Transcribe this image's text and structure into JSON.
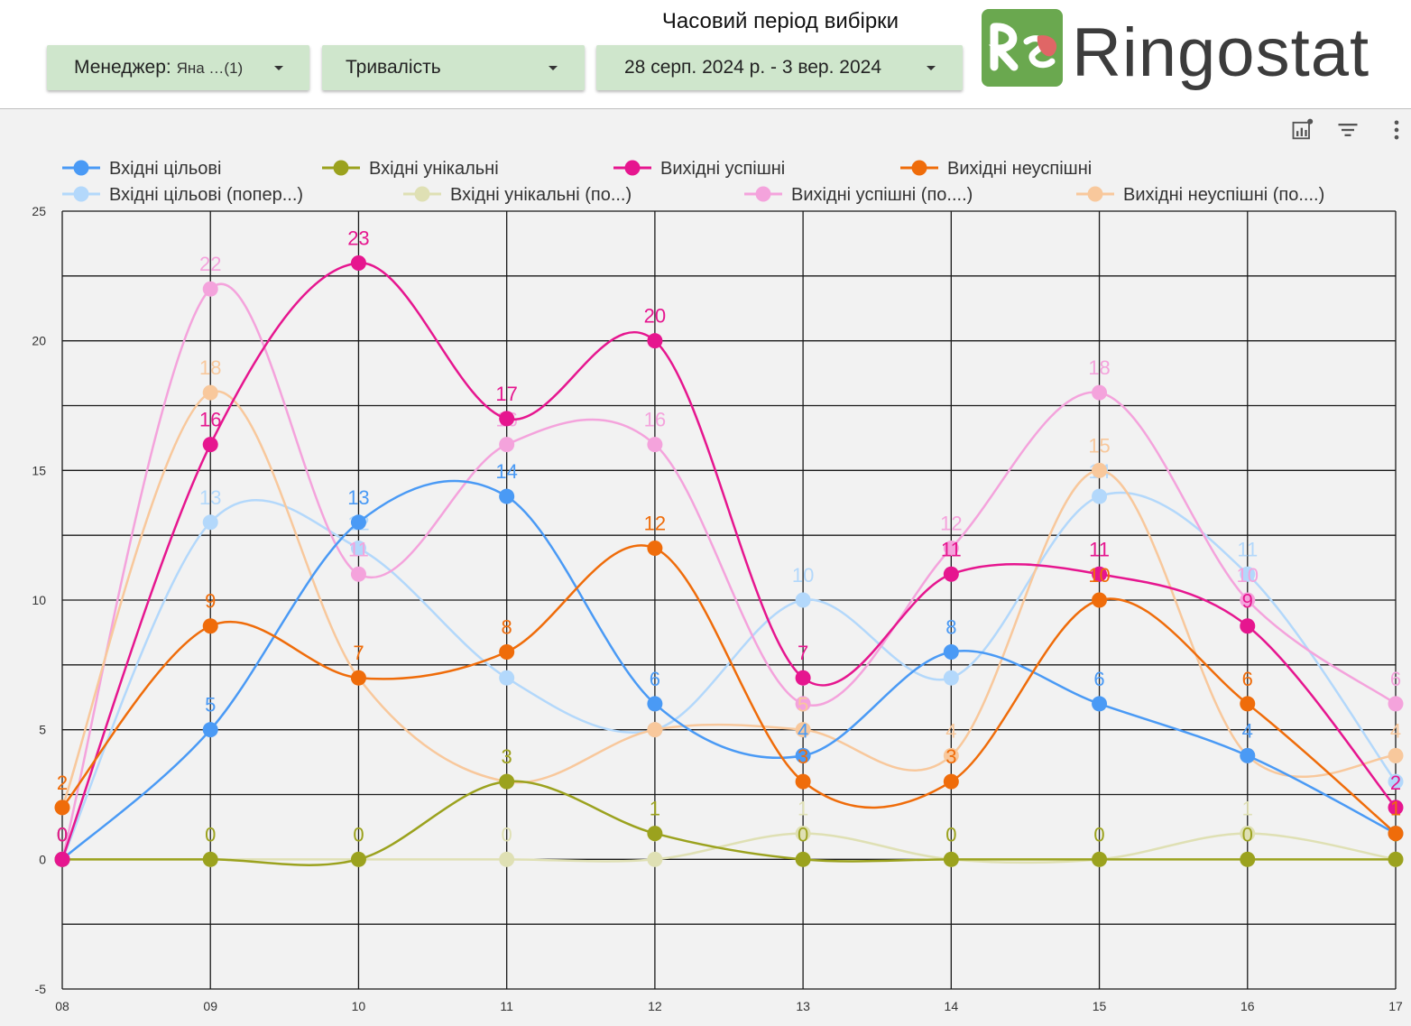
{
  "header": {
    "period_label": "Часовий період вибірки",
    "manager_filter": {
      "label": "Менеджер:",
      "value": "Яна …(1)"
    },
    "duration_filter": {
      "label": "Тривалість"
    },
    "date_range": {
      "value": "28 серп. 2024 р. - 3 вер. 2024"
    },
    "logo_text": "Ringostat",
    "logo_colors": {
      "green": "#6aa84f",
      "red": "#e06666"
    }
  },
  "toolbar": {
    "icons": [
      "chart-explore-icon",
      "filter-icon",
      "more-vert-icon"
    ]
  },
  "chart_data": {
    "type": "line",
    "x": [
      "08",
      "09",
      "10",
      "11",
      "12",
      "13",
      "14",
      "15",
      "16",
      "17"
    ],
    "ylim": [
      -5,
      25
    ],
    "yticks": [
      -5,
      0,
      5,
      10,
      15,
      20,
      25
    ],
    "grid": true,
    "legend_position": "top",
    "series": [
      {
        "name": "Вхідні цільові",
        "color": "#4a9af5",
        "values": [
          0,
          5,
          13,
          14,
          6,
          4,
          8,
          6,
          4,
          1
        ]
      },
      {
        "name": "Вхідні унікальні",
        "color": "#9ba21e",
        "values": [
          0,
          0,
          0,
          3,
          1,
          0,
          0,
          0,
          0,
          0
        ]
      },
      {
        "name": "Вихідні успішні",
        "color": "#e6168f",
        "values": [
          0,
          16,
          23,
          17,
          20,
          7,
          11,
          11,
          9,
          2
        ]
      },
      {
        "name": "Вихідні неуспішні",
        "color": "#ef6c0a",
        "values": [
          2,
          9,
          7,
          8,
          12,
          3,
          3,
          10,
          6,
          1
        ]
      },
      {
        "name": "Вхідні цільові (попер...)",
        "color": "#b3d8fb",
        "values": [
          0,
          13,
          12,
          7,
          5,
          10,
          7,
          14,
          11,
          3
        ]
      },
      {
        "name": "Вхідні унікальні (по...)",
        "color": "#dfe0b4",
        "values": [
          0,
          0,
          0,
          0,
          0,
          1,
          0,
          0,
          1,
          0
        ]
      },
      {
        "name": "Вихідні успішні (по....)",
        "color": "#f4a3dc",
        "values": [
          0,
          22,
          11,
          16,
          16,
          6,
          12,
          18,
          10,
          6
        ]
      },
      {
        "name": "Вихідні неуспішні (по....)",
        "color": "#f8c89c",
        "values": [
          2,
          18,
          7,
          3,
          5,
          5,
          4,
          15,
          4,
          4
        ]
      }
    ]
  }
}
